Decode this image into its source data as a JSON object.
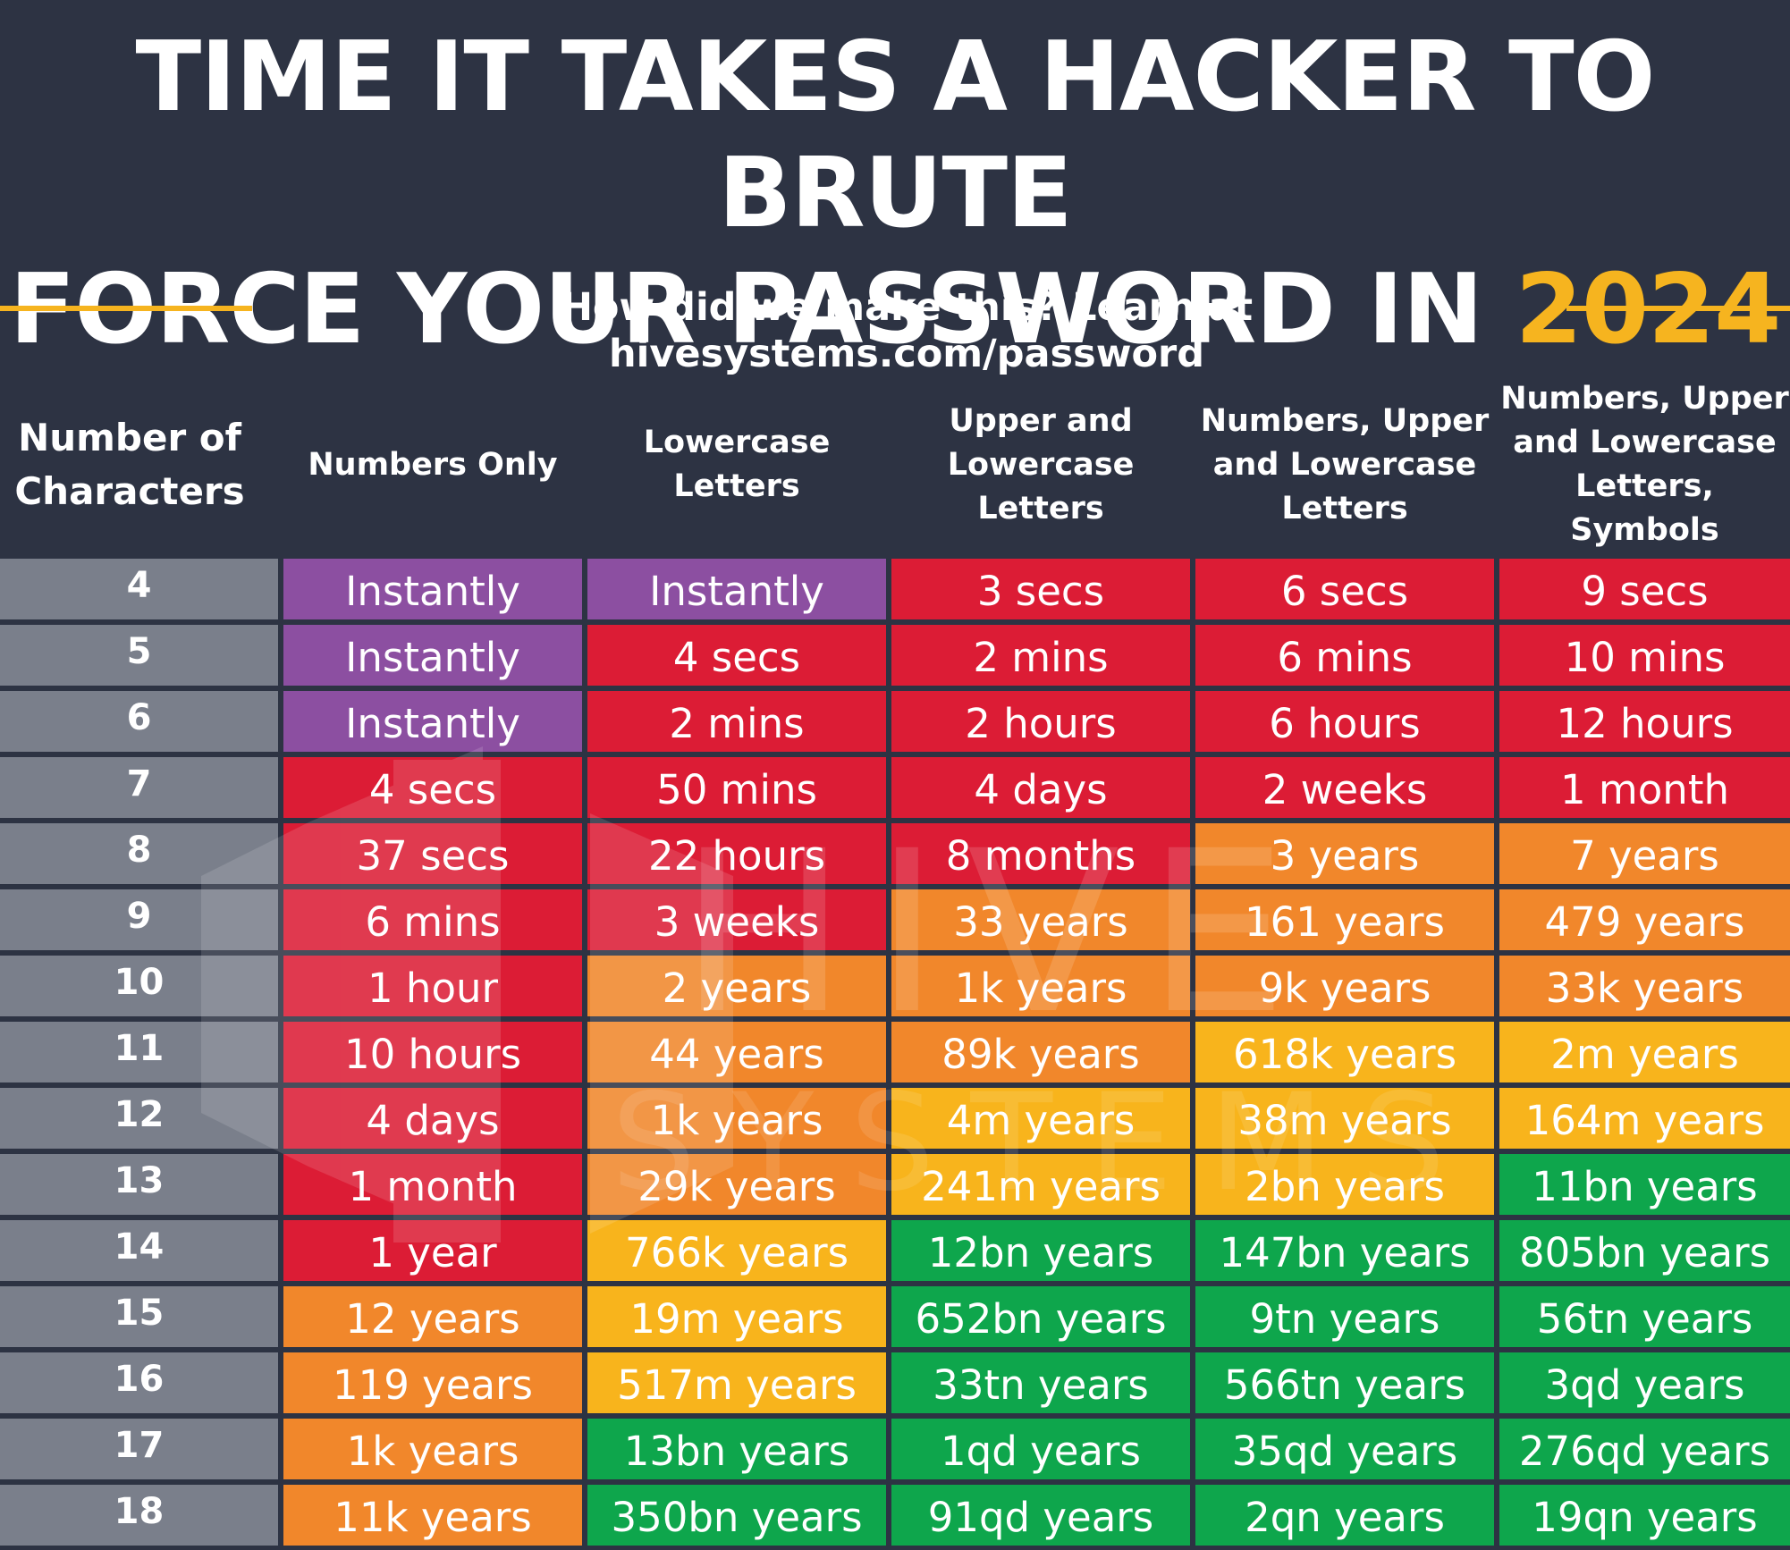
{
  "title": {
    "line1": "TIME IT TAKES A HACKER TO BRUTE",
    "line2": "FORCE YOUR PASSWORD IN",
    "year": "2024"
  },
  "subtitle": "How did we make this? Learn at hivesystems.com/password",
  "watermark": {
    "line1": "HIVE",
    "line2": "SYSTEMS"
  },
  "colors": {
    "background": "#2d3343",
    "accent": "#f6b41f",
    "row_label": "#7a7f8b",
    "instant": "#8c4fa1",
    "red": "#dc1c35",
    "orange": "#f1872b",
    "yellow": "#f8b41c",
    "green": "#0ea64c"
  },
  "chart_data": {
    "type": "table",
    "title": "TIME IT TAKES A HACKER TO BRUTE FORCE YOUR PASSWORD IN 2024",
    "columns": [
      "Number of\nCharacters",
      "Numbers Only",
      "Lowercase\nLetters",
      "Upper and\nLowercase\nLetters",
      "Numbers, Upper\nand Lowercase\nLetters",
      "Numbers, Upper\nand Lowercase\nLetters, Symbols"
    ],
    "rows": [
      {
        "chars": "4",
        "cells": [
          {
            "text": "Instantly",
            "level": "instant"
          },
          {
            "text": "Instantly",
            "level": "instant"
          },
          {
            "text": "3 secs",
            "level": "red"
          },
          {
            "text": "6 secs",
            "level": "red"
          },
          {
            "text": "9 secs",
            "level": "red"
          }
        ]
      },
      {
        "chars": "5",
        "cells": [
          {
            "text": "Instantly",
            "level": "instant"
          },
          {
            "text": "4 secs",
            "level": "red"
          },
          {
            "text": "2 mins",
            "level": "red"
          },
          {
            "text": "6 mins",
            "level": "red"
          },
          {
            "text": "10 mins",
            "level": "red"
          }
        ]
      },
      {
        "chars": "6",
        "cells": [
          {
            "text": "Instantly",
            "level": "instant"
          },
          {
            "text": "2 mins",
            "level": "red"
          },
          {
            "text": "2 hours",
            "level": "red"
          },
          {
            "text": "6 hours",
            "level": "red"
          },
          {
            "text": "12 hours",
            "level": "red"
          }
        ]
      },
      {
        "chars": "7",
        "cells": [
          {
            "text": "4 secs",
            "level": "red"
          },
          {
            "text": "50 mins",
            "level": "red"
          },
          {
            "text": "4 days",
            "level": "red"
          },
          {
            "text": "2 weeks",
            "level": "red"
          },
          {
            "text": "1 month",
            "level": "red"
          }
        ]
      },
      {
        "chars": "8",
        "cells": [
          {
            "text": "37 secs",
            "level": "red"
          },
          {
            "text": "22 hours",
            "level": "red"
          },
          {
            "text": "8 months",
            "level": "red"
          },
          {
            "text": "3 years",
            "level": "orange"
          },
          {
            "text": "7 years",
            "level": "orange"
          }
        ]
      },
      {
        "chars": "9",
        "cells": [
          {
            "text": "6 mins",
            "level": "red"
          },
          {
            "text": "3 weeks",
            "level": "red"
          },
          {
            "text": "33 years",
            "level": "orange"
          },
          {
            "text": "161 years",
            "level": "orange"
          },
          {
            "text": "479 years",
            "level": "orange"
          }
        ]
      },
      {
        "chars": "10",
        "cells": [
          {
            "text": "1 hour",
            "level": "red"
          },
          {
            "text": "2 years",
            "level": "orange"
          },
          {
            "text": "1k years",
            "level": "orange"
          },
          {
            "text": "9k years",
            "level": "orange"
          },
          {
            "text": "33k years",
            "level": "orange"
          }
        ]
      },
      {
        "chars": "11",
        "cells": [
          {
            "text": "10 hours",
            "level": "red"
          },
          {
            "text": "44 years",
            "level": "orange"
          },
          {
            "text": "89k years",
            "level": "orange"
          },
          {
            "text": "618k years",
            "level": "yellow"
          },
          {
            "text": "2m years",
            "level": "yellow"
          }
        ]
      },
      {
        "chars": "12",
        "cells": [
          {
            "text": "4 days",
            "level": "red"
          },
          {
            "text": "1k years",
            "level": "orange"
          },
          {
            "text": "4m years",
            "level": "yellow"
          },
          {
            "text": "38m years",
            "level": "yellow"
          },
          {
            "text": "164m years",
            "level": "yellow"
          }
        ]
      },
      {
        "chars": "13",
        "cells": [
          {
            "text": "1 month",
            "level": "red"
          },
          {
            "text": "29k years",
            "level": "orange"
          },
          {
            "text": "241m years",
            "level": "yellow"
          },
          {
            "text": "2bn years",
            "level": "yellow"
          },
          {
            "text": "11bn years",
            "level": "green"
          }
        ]
      },
      {
        "chars": "14",
        "cells": [
          {
            "text": "1 year",
            "level": "red"
          },
          {
            "text": "766k years",
            "level": "yellow"
          },
          {
            "text": "12bn years",
            "level": "green"
          },
          {
            "text": "147bn years",
            "level": "green"
          },
          {
            "text": "805bn years",
            "level": "green"
          }
        ]
      },
      {
        "chars": "15",
        "cells": [
          {
            "text": "12 years",
            "level": "orange"
          },
          {
            "text": "19m years",
            "level": "yellow"
          },
          {
            "text": "652bn years",
            "level": "green"
          },
          {
            "text": "9tn years",
            "level": "green"
          },
          {
            "text": "56tn years",
            "level": "green"
          }
        ]
      },
      {
        "chars": "16",
        "cells": [
          {
            "text": "119 years",
            "level": "orange"
          },
          {
            "text": "517m years",
            "level": "yellow"
          },
          {
            "text": "33tn years",
            "level": "green"
          },
          {
            "text": "566tn years",
            "level": "green"
          },
          {
            "text": "3qd years",
            "level": "green"
          }
        ]
      },
      {
        "chars": "17",
        "cells": [
          {
            "text": "1k years",
            "level": "orange"
          },
          {
            "text": "13bn years",
            "level": "green"
          },
          {
            "text": "1qd years",
            "level": "green"
          },
          {
            "text": "35qd years",
            "level": "green"
          },
          {
            "text": "276qd years",
            "level": "green"
          }
        ]
      },
      {
        "chars": "18",
        "cells": [
          {
            "text": "11k years",
            "level": "orange"
          },
          {
            "text": "350bn years",
            "level": "green"
          },
          {
            "text": "91qd years",
            "level": "green"
          },
          {
            "text": "2qn years",
            "level": "green"
          },
          {
            "text": "19qn years",
            "level": "green"
          }
        ]
      }
    ]
  }
}
